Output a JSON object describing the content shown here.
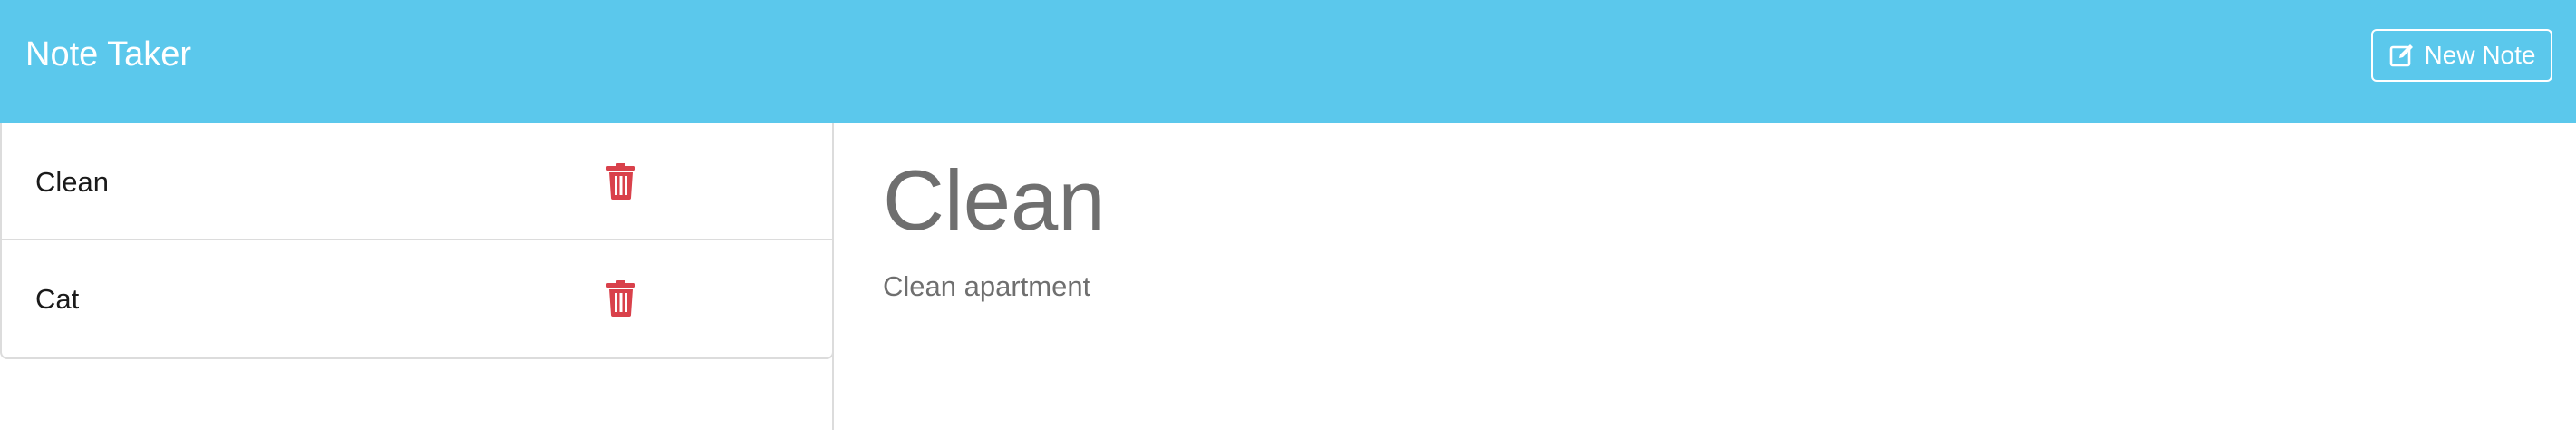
{
  "app": {
    "title": "Note Taker"
  },
  "header": {
    "new_note_label": "New Note",
    "new_note_icon": "edit-icon"
  },
  "notes": [
    {
      "title": "Clean",
      "delete_icon": "trash-icon"
    },
    {
      "title": "Cat",
      "delete_icon": "trash-icon"
    }
  ],
  "editor": {
    "title": "Clean",
    "text": "Clean apartment"
  },
  "colors": {
    "navbar": "#5bc8ec",
    "delete": "#d9414b",
    "editor_text": "#6f6f6f"
  }
}
